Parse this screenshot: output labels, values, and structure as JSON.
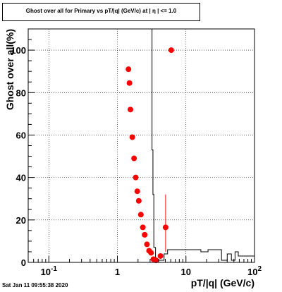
{
  "title": "Ghost over all for Primary vs pT/|q| (GeV/c) at | η | <= 1.0",
  "footer": "Sat Jan 11 09:55:38 2020",
  "chart_data": {
    "type": "scatter",
    "title": "Ghost over all for Primary vs pT/|q| (GeV/c) at | η | <= 1.0",
    "xlabel": "pT/|q| (GeV/c)",
    "ylabel": "Ghost over all(%)",
    "xscale": "log",
    "xlim": [
      0.05,
      100
    ],
    "ylim": [
      0,
      110
    ],
    "grid": true,
    "x_tick_labels": [
      "10^-1",
      "1",
      "10",
      "10^2"
    ],
    "y_tick_labels": [
      "0",
      "20",
      "40",
      "60",
      "80",
      "100"
    ],
    "series": [
      {
        "color": "#ff0000",
        "marker": "circle",
        "points": [
          {
            "x": 1.45,
            "y": 91
          },
          {
            "x": 1.5,
            "y": 84.5
          },
          {
            "x": 1.55,
            "y": 72
          },
          {
            "x": 1.65,
            "y": 59
          },
          {
            "x": 1.75,
            "y": 49
          },
          {
            "x": 1.85,
            "y": 40
          },
          {
            "x": 1.95,
            "y": 33.5
          },
          {
            "x": 2.05,
            "y": 29
          },
          {
            "x": 2.2,
            "y": 22.5
          },
          {
            "x": 2.35,
            "y": 16.5
          },
          {
            "x": 2.5,
            "y": 13
          },
          {
            "x": 2.7,
            "y": 8.5
          },
          {
            "x": 2.9,
            "y": 5.5
          },
          {
            "x": 3.1,
            "y": 4.5
          },
          {
            "x": 3.35,
            "y": 1.5
          },
          {
            "x": 3.65,
            "y": 1
          },
          {
            "x": 4.25,
            "y": 3
          },
          {
            "x": 5.05,
            "y": 16.5,
            "err_low": 5,
            "err_high": 32
          },
          {
            "x": 6.1,
            "y": 100
          }
        ]
      },
      {
        "name": "",
        "style": "histogram-step",
        "color": "#000000",
        "note": "reference distribution drawn as black step outline",
        "points": [
          {
            "x": 2.9,
            "y": 110
          },
          {
            "x": 3.2,
            "y": 53
          },
          {
            "x": 3.3,
            "y": 32
          },
          {
            "x": 3.4,
            "y": 7
          },
          {
            "x": 3.6,
            "y": 1
          },
          {
            "x": 4.1,
            "y": 1
          },
          {
            "x": 4.8,
            "y": 4
          },
          {
            "x": 5.4,
            "y": 6
          },
          {
            "x": 16.5,
            "y": 5
          },
          {
            "x": 21,
            "y": 6
          },
          {
            "x": 33,
            "y": 1
          },
          {
            "x": 40,
            "y": 4
          },
          {
            "x": 46,
            "y": 1
          },
          {
            "x": 52,
            "y": 5
          },
          {
            "x": 58,
            "y": 3
          },
          {
            "x": 100,
            "y": 3
          }
        ]
      }
    ]
  }
}
